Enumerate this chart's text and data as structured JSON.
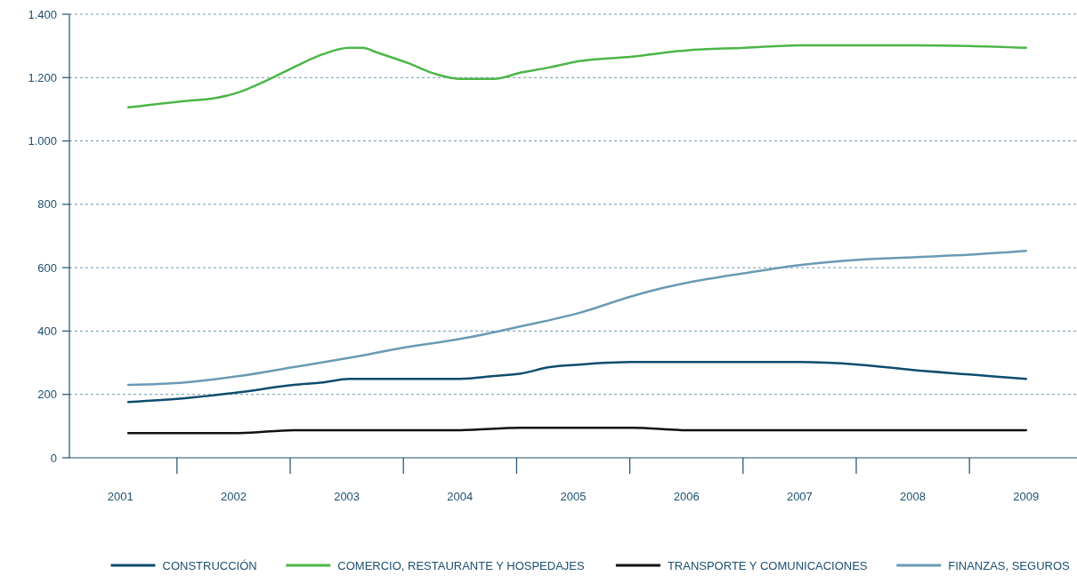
{
  "chart_data": {
    "type": "line",
    "xlim": [
      2000.55,
      2009.45
    ],
    "xticks": [
      {
        "value": 2001,
        "label": "2001"
      },
      {
        "value": 2002,
        "label": "2002"
      },
      {
        "value": 2003,
        "label": "2003"
      },
      {
        "value": 2004,
        "label": "2004"
      },
      {
        "value": 2005,
        "label": "2005"
      },
      {
        "value": 2006,
        "label": "2006"
      },
      {
        "value": 2007,
        "label": "2007"
      },
      {
        "value": 2008,
        "label": "2008"
      },
      {
        "value": 2009,
        "label": "2009"
      }
    ],
    "ylim": [
      0,
      1400
    ],
    "yticks": [
      0,
      200,
      400,
      600,
      800,
      {
        "value": 1000,
        "label": "1.000"
      },
      {
        "value": 1200,
        "label": "1.200"
      },
      {
        "value": 1400,
        "label": "1.400"
      }
    ],
    "grid": "y",
    "legend": "bottom",
    "marker": "none",
    "line_style": "solid",
    "series": [
      {
        "name": "CONSTRUCCIÓN",
        "color": "#0e4d6e",
        "x": [
          2001.07,
          2001.57,
          2002.05,
          2002.53,
          2002.79,
          2003.02,
          2003.54,
          2004.0,
          2004.3,
          2004.54,
          2004.79,
          2005.05,
          2005.52,
          2006.0,
          2006.52,
          2007.0,
          2007.52,
          2008.0,
          2008.5,
          2009.0
        ],
        "values": [
          176,
          188,
          207,
          230,
          238,
          249,
          249,
          249,
          258,
          266,
          286,
          294,
          302,
          302,
          302,
          302,
          294,
          277,
          263,
          249
        ]
      },
      {
        "name": "COMERCIO, RESTAURANTE Y HOSPEDAJES",
        "color": "#4cb648",
        "x": [
          2001.07,
          2001.57,
          2001.82,
          2002.05,
          2002.27,
          2002.53,
          2002.79,
          2003.02,
          2003.14,
          2003.26,
          2003.54,
          2003.77,
          2004.0,
          2004.3,
          2004.54,
          2004.79,
          2005.05,
          2005.52,
          2006.0,
          2006.52,
          2007.0,
          2007.52,
          2008.0,
          2008.5,
          2009.0
        ],
        "values": [
          1106,
          1126,
          1134,
          1154,
          1187,
          1232,
          1274,
          1294,
          1294,
          1280,
          1246,
          1213,
          1196,
          1196,
          1216,
          1232,
          1252,
          1266,
          1286,
          1294,
          1302,
          1302,
          1302,
          1300,
          1294
        ]
      },
      {
        "name": "TRANSPORTE Y COMUNICACIONES",
        "color": "#111111",
        "x": [
          2001.07,
          2002.05,
          2002.53,
          2004.0,
          2004.54,
          2005.52,
          2006.0,
          2009.0
        ],
        "values": [
          78,
          78,
          87,
          87,
          95,
          95,
          87,
          87
        ]
      },
      {
        "name": "FINANZAS, SEGUROS",
        "color": "#6a9ab5",
        "x": [
          2001.07,
          2001.57,
          2002.05,
          2002.53,
          2003.0,
          2003.54,
          2004.0,
          2004.54,
          2005.05,
          2005.52,
          2005.78,
          2006.0,
          2006.52,
          2007.0,
          2007.52,
          2008.0,
          2008.5,
          2009.0
        ],
        "values": [
          230,
          238,
          258,
          286,
          314,
          350,
          375,
          415,
          457,
          510,
          535,
          552,
          583,
          608,
          625,
          633,
          641,
          653
        ]
      }
    ]
  }
}
